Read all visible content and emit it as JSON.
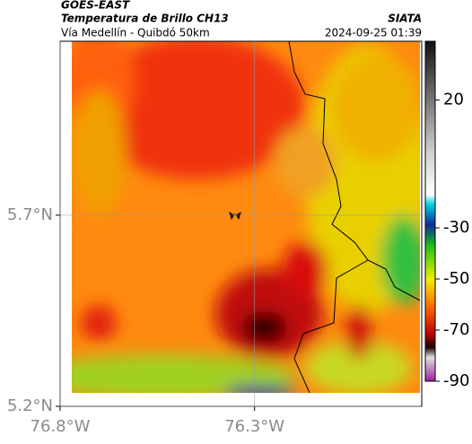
{
  "header": {
    "title": "GOES-EAST",
    "subtitle": "Temperatura de Brillo CH13",
    "location": "Vía Medellín - Quibdó 50km",
    "source": "SIATA",
    "datetime": "2024-09-25 01:39"
  },
  "map": {
    "xlim": [
      -76.8,
      -75.87
    ],
    "ylim": [
      5.2,
      6.155
    ],
    "xticks": [
      {
        "value": -76.8,
        "label": "76.8°W"
      },
      {
        "value": -76.3,
        "label": "76.3°W"
      }
    ],
    "yticks": [
      {
        "value": 5.2,
        "label": "5.2°N"
      },
      {
        "value": 5.7,
        "label": "5.7°N"
      }
    ]
  },
  "colorbar": {
    "lim": [
      -90,
      43
    ],
    "ticks": [
      20,
      -30,
      -50,
      -70,
      -90
    ]
  }
}
